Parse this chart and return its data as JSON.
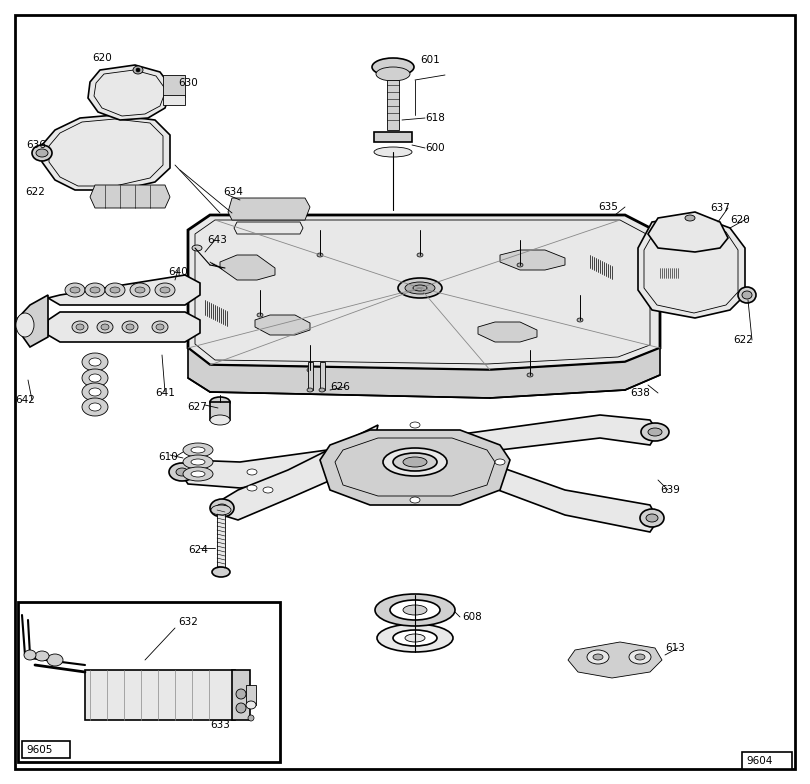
{
  "bg_color": "#ffffff",
  "lw_thin": 0.6,
  "lw_main": 1.2,
  "lw_bold": 2.0,
  "gray_light": "#e8e8e8",
  "gray_mid": "#d0d0d0",
  "gray_dark": "#b0b0b0",
  "white": "#ffffff",
  "black": "#000000"
}
